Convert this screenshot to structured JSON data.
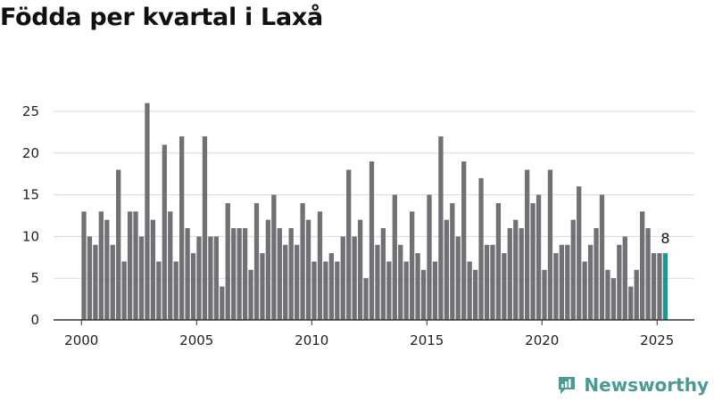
{
  "chart_data": {
    "type": "bar",
    "title": "Födda per kvartal i Laxå",
    "xlabel": "",
    "ylabel": "",
    "ylim": [
      0,
      25
    ],
    "yticks": [
      0,
      5,
      10,
      15,
      20,
      25
    ],
    "xticks": [
      2000,
      2005,
      2010,
      2015,
      2020,
      2025
    ],
    "x_start": "2000-Q1",
    "grid": true,
    "values": [
      13,
      10,
      9,
      13,
      12,
      9,
      18,
      7,
      13,
      13,
      10,
      26,
      12,
      7,
      21,
      13,
      7,
      22,
      11,
      8,
      10,
      22,
      10,
      10,
      4,
      14,
      11,
      11,
      11,
      6,
      14,
      8,
      12,
      15,
      11,
      9,
      11,
      9,
      14,
      12,
      7,
      13,
      7,
      8,
      7,
      10,
      18,
      10,
      12,
      5,
      19,
      9,
      11,
      7,
      15,
      9,
      7,
      13,
      8,
      6,
      15,
      7,
      22,
      12,
      14,
      10,
      19,
      7,
      6,
      17,
      9,
      9,
      14,
      8,
      11,
      12,
      11,
      18,
      14,
      15,
      6,
      18,
      8,
      9,
      9,
      12,
      16,
      7,
      9,
      11,
      15,
      6,
      5,
      9,
      10,
      4,
      6,
      13,
      11,
      8,
      8,
      8
    ],
    "highlight": {
      "index": 101,
      "label": "8"
    },
    "colors": {
      "bar": "#717075",
      "highlight": "#0f9d95",
      "grid": "#d9d9d9",
      "axis": "#333333"
    }
  },
  "brand": {
    "name": "Newsworthy",
    "color": "#4a9a95",
    "icon": "newsworthy-logo-icon"
  }
}
